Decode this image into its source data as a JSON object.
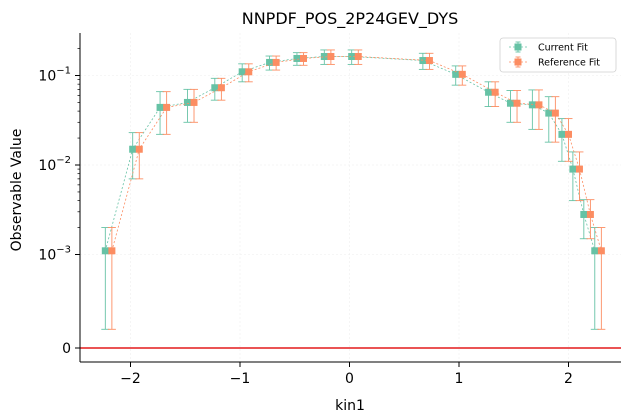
{
  "chart_data": {
    "type": "scatter",
    "title": "NNPDF_POS_2P24GEV_DYS",
    "xlabel": "kin1",
    "ylabel": "Observable Value",
    "x_ticks": [
      -2,
      -1,
      0,
      1,
      2
    ],
    "x_tick_labels": [
      "−2",
      "−1",
      "0",
      "1",
      "2"
    ],
    "y_scale": "symlog",
    "y_linthresh": 0.001,
    "y_ticks": [
      0,
      0.001,
      0.01,
      0.1
    ],
    "y_tick_labels": [
      {
        "base": "0",
        "exp": ""
      },
      {
        "base": "10",
        "exp": "−3"
      },
      {
        "base": "10",
        "exp": "−2"
      },
      {
        "base": "10",
        "exp": "−1"
      }
    ],
    "xlim": [
      -2.5,
      2.5
    ],
    "zero_line": {
      "y": 0,
      "color": "#e41a1c"
    },
    "grid": "faint",
    "legend": {
      "position": "top-right"
    },
    "series": [
      {
        "name": "Current Fit",
        "color": "#66c2a5",
        "x_offset": -0.03,
        "x": [
          -2.2,
          -1.95,
          -1.7,
          -1.45,
          -1.2,
          -0.95,
          -0.7,
          -0.45,
          -0.2,
          0.05,
          0.7,
          1.0,
          1.3,
          1.5,
          1.7,
          1.85,
          1.97,
          2.07,
          2.17,
          2.27
        ],
        "y": [
          0.0011,
          0.015,
          0.044,
          0.05,
          0.073,
          0.11,
          0.14,
          0.155,
          0.163,
          0.163,
          0.147,
          0.103,
          0.065,
          0.049,
          0.047,
          0.038,
          0.022,
          0.009,
          0.0028,
          0.0011
        ],
        "err": [
          0.0009,
          0.008,
          0.022,
          0.02,
          0.02,
          0.025,
          0.025,
          0.025,
          0.03,
          0.03,
          0.03,
          0.025,
          0.02,
          0.019,
          0.022,
          0.02,
          0.011,
          0.005,
          0.0013,
          0.0009
        ]
      },
      {
        "name": "Reference Fit",
        "color": "#fc8d62",
        "x_offset": 0.03,
        "x": [
          -2.2,
          -1.95,
          -1.7,
          -1.45,
          -1.2,
          -0.95,
          -0.7,
          -0.45,
          -0.2,
          0.05,
          0.7,
          1.0,
          1.3,
          1.5,
          1.7,
          1.85,
          1.97,
          2.07,
          2.17,
          2.27
        ],
        "y": [
          0.0011,
          0.015,
          0.044,
          0.05,
          0.073,
          0.11,
          0.14,
          0.155,
          0.163,
          0.163,
          0.147,
          0.103,
          0.065,
          0.049,
          0.047,
          0.038,
          0.022,
          0.009,
          0.0028,
          0.0011
        ],
        "err": [
          0.0009,
          0.008,
          0.022,
          0.02,
          0.02,
          0.025,
          0.025,
          0.025,
          0.03,
          0.03,
          0.03,
          0.025,
          0.02,
          0.019,
          0.022,
          0.02,
          0.011,
          0.005,
          0.0013,
          0.0009
        ]
      }
    ]
  }
}
